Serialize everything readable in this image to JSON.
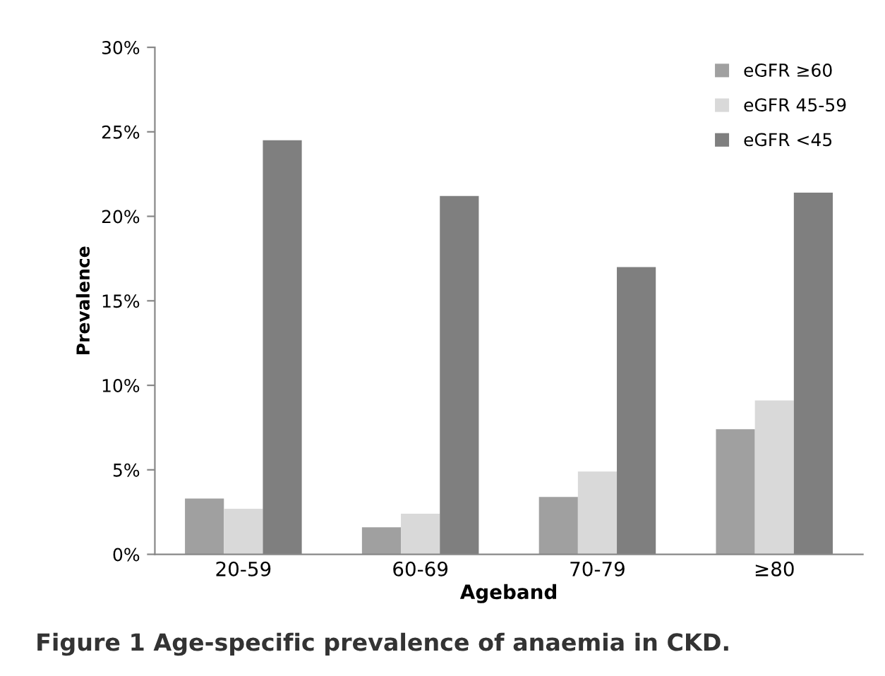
{
  "chart_data": {
    "type": "bar",
    "xlabel": "Ageband",
    "ylabel": "Prevalence",
    "categories": [
      "20-59",
      "60-69",
      "70-79",
      "≥80"
    ],
    "series": [
      {
        "name": "eGFR ≥60",
        "color": "#a0a0a0",
        "values": [
          3.3,
          1.6,
          3.4,
          7.4
        ]
      },
      {
        "name": "eGFR 45-59",
        "color": "#d9d9d9",
        "values": [
          2.7,
          2.4,
          4.9,
          9.1
        ]
      },
      {
        "name": "eGFR <45",
        "color": "#7f7f7f",
        "values": [
          24.5,
          21.2,
          17.0,
          21.4
        ]
      }
    ],
    "ylim": [
      0,
      30
    ],
    "yticks": [
      {
        "value": 0,
        "label": "0%"
      },
      {
        "value": 5,
        "label": "5%"
      },
      {
        "value": 10,
        "label": "10%"
      },
      {
        "value": 15,
        "label": "15%"
      },
      {
        "value": 20,
        "label": "20%"
      },
      {
        "value": 25,
        "label": "25%"
      },
      {
        "value": 30,
        "label": "30%"
      }
    ],
    "legend": "top right",
    "grid": false,
    "annotations": [
      "Figure 1 Age-specific prevalence of anaemia in CKD."
    ]
  }
}
